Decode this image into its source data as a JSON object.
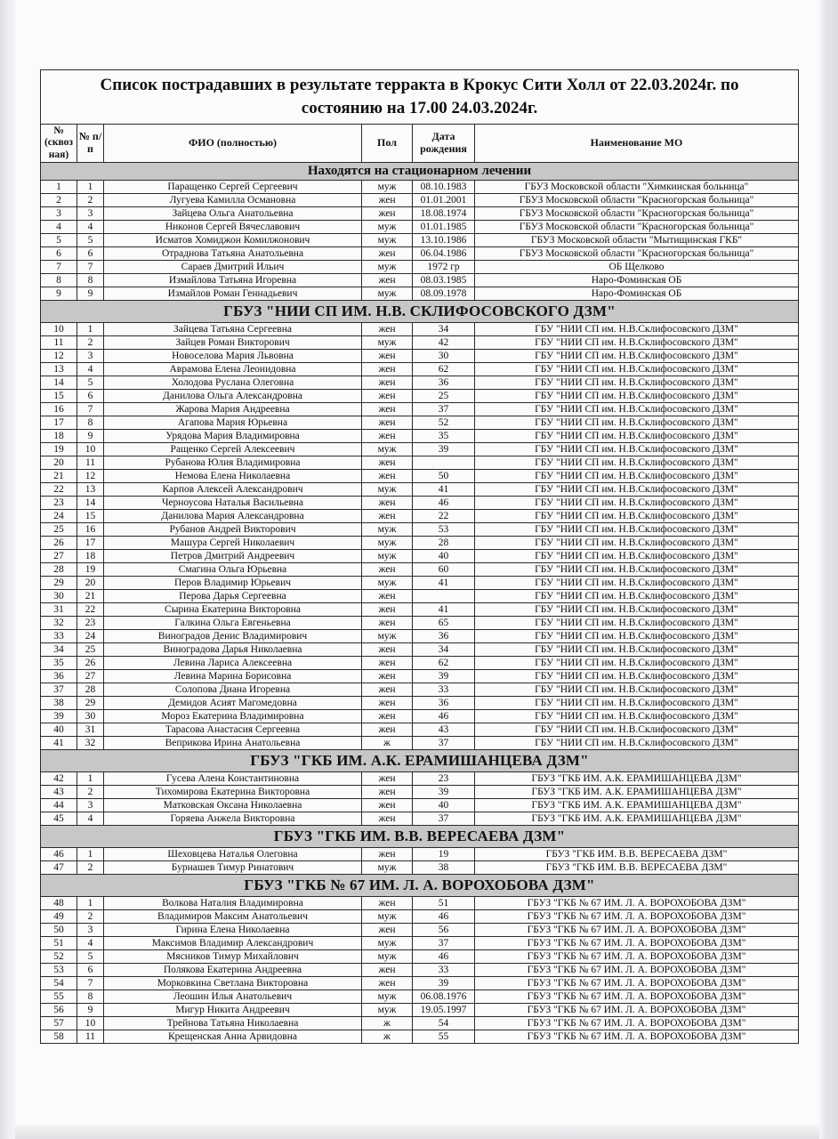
{
  "colors": {
    "section_bg": "#c7c7c7",
    "border_color": "#2b2b2b",
    "page_bg": "#fbfbfc"
  },
  "document": {
    "title": "Список пострадавших в результате терракта в Крокус Сити Холл от 22.03.2024г. по состоянию на 17.00 24.03.2024г."
  },
  "table": {
    "columns": [
      "№ (сквозная)",
      "№ п/п",
      "ФИО (полностью)",
      "Пол",
      "Дата рождения",
      "Наименование МО"
    ]
  },
  "sections": [
    {
      "kind": "status",
      "title": "Находятся на стационарном лечении",
      "rows": [
        [
          "1",
          "1",
          "Паращенко Сергей Сергеевич",
          "муж",
          "08.10.1983",
          "ГБУЗ Московской области \"Химкинская больница\""
        ],
        [
          "2",
          "2",
          "Лугуева Камилла Османовна",
          "жен",
          "01.01.2001",
          "ГБУЗ Московской области \"Красногорская больница\""
        ],
        [
          "3",
          "3",
          "Зайцева Ольга Анатольевна",
          "жен",
          "18.08.1974",
          "ГБУЗ Московской области \"Красногорская больница\""
        ],
        [
          "4",
          "4",
          "Никонов Сергей Вячеславович",
          "муж",
          "01.01.1985",
          "ГБУЗ Московской области \"Красногорская больница\""
        ],
        [
          "5",
          "5",
          "Исматов Хомиджон Комилжонович",
          "муж",
          "13.10.1986",
          "ГБУЗ Московской области \"Мытищинская ГКБ\""
        ],
        [
          "6",
          "6",
          "Отраднова Татьяна Анатольевна",
          "жен",
          "06.04.1986",
          "ГБУЗ Московской области \"Красногорская больница\""
        ],
        [
          "7",
          "7",
          "Сараев Дмитрий Ильич",
          "муж",
          "1972 гр",
          "ОБ Щелково"
        ],
        [
          "8",
          "8",
          "Измайлова Татьяна Игоревна",
          "жен",
          "08.03.1985",
          "Наро-Фоминская ОБ"
        ],
        [
          "9",
          "9",
          "Измайлов Роман Геннадьевич",
          "муж",
          "08.09.1978",
          "Наро-Фоминская ОБ"
        ]
      ]
    },
    {
      "kind": "hospital",
      "title": "ГБУЗ \"НИИ СП ИМ. Н.В. СКЛИФОСОВСКОГО ДЗМ\"",
      "rows": [
        [
          "10",
          "1",
          "Зайцева Татьяна Сергеевна",
          "жен",
          "34",
          "ГБУ \"НИИ СП им. Н.В.Склифосовского ДЗМ\""
        ],
        [
          "11",
          "2",
          "Зайцев Роман Викторович",
          "муж",
          "42",
          "ГБУ \"НИИ СП им. Н.В.Склифосовского ДЗМ\""
        ],
        [
          "12",
          "3",
          "Новоселова Мария Львовна",
          "жен",
          "30",
          "ГБУ \"НИИ СП им. Н.В.Склифосовского ДЗМ\""
        ],
        [
          "13",
          "4",
          "Аврамова Елена Леонидовна",
          "жен",
          "62",
          "ГБУ \"НИИ СП им. Н.В.Склифосовского ДЗМ\""
        ],
        [
          "14",
          "5",
          "Холодова Руслана Олеговна",
          "жен",
          "36",
          "ГБУ \"НИИ СП им. Н.В.Склифосовского ДЗМ\""
        ],
        [
          "15",
          "6",
          "Данилова Ольга Александровна",
          "жен",
          "25",
          "ГБУ \"НИИ СП им. Н.В.Склифосовского ДЗМ\""
        ],
        [
          "16",
          "7",
          "Жарова Мария Андреевна",
          "жен",
          "37",
          "ГБУ \"НИИ СП им. Н.В.Склифосовского ДЗМ\""
        ],
        [
          "17",
          "8",
          "Агапова Мария Юрьевна",
          "жен",
          "52",
          "ГБУ \"НИИ СП им. Н.В.Склифосовского ДЗМ\""
        ],
        [
          "18",
          "9",
          "Урядова Мария Владимировна",
          "жен",
          "35",
          "ГБУ \"НИИ СП им. Н.В.Склифосовского ДЗМ\""
        ],
        [
          "19",
          "10",
          "Ращенко Сергей Алексеевич",
          "муж",
          "39",
          "ГБУ \"НИИ СП им. Н.В.Склифосовского ДЗМ\""
        ],
        [
          "20",
          "11",
          "Рубанова Юлия Владимировна",
          "жен",
          "",
          "ГБУ \"НИИ СП им. Н.В.Склифосовского ДЗМ\""
        ],
        [
          "21",
          "12",
          "Немова Елена Николаевна",
          "жен",
          "50",
          "ГБУ \"НИИ СП им. Н.В.Склифосовского ДЗМ\""
        ],
        [
          "22",
          "13",
          "Карпов Алексей Александрович",
          "муж",
          "41",
          "ГБУ \"НИИ СП им. Н.В.Склифосовского ДЗМ\""
        ],
        [
          "23",
          "14",
          "Черноусова Наталья Васильевна",
          "жен",
          "46",
          "ГБУ \"НИИ СП им. Н.В.Склифосовского ДЗМ\""
        ],
        [
          "24",
          "15",
          "Данилова Мария Александровна",
          "жен",
          "22",
          "ГБУ \"НИИ СП им. Н.В.Склифосовского ДЗМ\""
        ],
        [
          "25",
          "16",
          "Рубанов Андрей Викторович",
          "муж",
          "53",
          "ГБУ \"НИИ СП им. Н.В.Склифосовского ДЗМ\""
        ],
        [
          "26",
          "17",
          "Машура Сергей Николаевич",
          "муж",
          "28",
          "ГБУ \"НИИ СП им. Н.В.Склифосовского ДЗМ\""
        ],
        [
          "27",
          "18",
          "Петров Дмитрий Андреевич",
          "муж",
          "40",
          "ГБУ \"НИИ СП им. Н.В.Склифосовского ДЗМ\""
        ],
        [
          "28",
          "19",
          "Смагина Ольга Юрьевна",
          "жен",
          "60",
          "ГБУ \"НИИ СП им. Н.В.Склифосовского ДЗМ\""
        ],
        [
          "29",
          "20",
          "Перов Владимир Юрьевич",
          "муж",
          "41",
          "ГБУ \"НИИ СП им. Н.В.Склифосовского ДЗМ\""
        ],
        [
          "30",
          "21",
          "Перова Дарья Сергеевна",
          "жен",
          "",
          "ГБУ \"НИИ СП им. Н.В.Склифосовского ДЗМ\""
        ],
        [
          "31",
          "22",
          "Сырина Екатерина Викторовна",
          "жен",
          "41",
          "ГБУ \"НИИ СП им. Н.В.Склифосовского ДЗМ\""
        ],
        [
          "32",
          "23",
          "Галкина Ольга Евгеньевна",
          "жен",
          "65",
          "ГБУ \"НИИ СП им. Н.В.Склифосовского ДЗМ\""
        ],
        [
          "33",
          "24",
          "Виноградов Денис Владимирович",
          "муж",
          "36",
          "ГБУ \"НИИ СП им. Н.В.Склифосовского ДЗМ\""
        ],
        [
          "34",
          "25",
          "Виноградова Дарья Николаевна",
          "жен",
          "34",
          "ГБУ \"НИИ СП им. Н.В.Склифосовского ДЗМ\""
        ],
        [
          "35",
          "26",
          "Левина Лариса Алексеевна",
          "жен",
          "62",
          "ГБУ \"НИИ СП им. Н.В.Склифосовского ДЗМ\""
        ],
        [
          "36",
          "27",
          "Левина Марина Борисовна",
          "жен",
          "39",
          "ГБУ \"НИИ СП им. Н.В.Склифосовского ДЗМ\""
        ],
        [
          "37",
          "28",
          "Солопова Диана Игоревна",
          "жен",
          "33",
          "ГБУ \"НИИ СП им. Н.В.Склифосовского ДЗМ\""
        ],
        [
          "38",
          "29",
          "Демидов Асият Магомедовна",
          "жен",
          "36",
          "ГБУ \"НИИ СП им. Н.В.Склифосовского ДЗМ\""
        ],
        [
          "39",
          "30",
          "Мороз Екатерина Владимировна",
          "жен",
          "46",
          "ГБУ \"НИИ СП им. Н.В.Склифосовского ДЗМ\""
        ],
        [
          "40",
          "31",
          "Тарасова Анастасия Сергеевна",
          "жен",
          "43",
          "ГБУ \"НИИ СП им. Н.В.Склифосовского ДЗМ\""
        ],
        [
          "41",
          "32",
          "Веприкова Ирина Анатольевна",
          "ж",
          "37",
          "ГБУ \"НИИ СП им. Н.В.Склифосовского ДЗМ\""
        ]
      ]
    },
    {
      "kind": "hospital",
      "title": "ГБУЗ \"ГКБ ИМ. А.К. ЕРАМИШАНЦЕВА ДЗМ\"",
      "rows": [
        [
          "42",
          "1",
          "Гусева Алена Константиновна",
          "жен",
          "23",
          "ГБУЗ \"ГКБ ИМ. А.К. ЕРАМИШАНЦЕВА ДЗМ\""
        ],
        [
          "43",
          "2",
          "Тихомирова Екатерина Викторовна",
          "жен",
          "39",
          "ГБУЗ \"ГКБ ИМ. А.К. ЕРАМИШАНЦЕВА ДЗМ\""
        ],
        [
          "44",
          "3",
          "Матковская Оксана Николаевна",
          "жен",
          "40",
          "ГБУЗ \"ГКБ ИМ. А.К. ЕРАМИШАНЦЕВА ДЗМ\""
        ],
        [
          "45",
          "4",
          "Горяева Анжела Викторовна",
          "жен",
          "37",
          "ГБУЗ \"ГКБ ИМ. А.К. ЕРАМИШАНЦЕВА ДЗМ\""
        ]
      ]
    },
    {
      "kind": "hospital",
      "title": "ГБУЗ \"ГКБ ИМ. В.В. ВЕРЕСАЕВА ДЗМ\"",
      "rows": [
        [
          "46",
          "1",
          "Шеховцева Наталья Олеговна",
          "жен",
          "19",
          "ГБУЗ \"ГКБ ИМ. В.В. ВЕРЕСАЕВА ДЗМ\""
        ],
        [
          "47",
          "2",
          "Бурнашев Тимур Ринатович",
          "муж",
          "38",
          "ГБУЗ \"ГКБ ИМ. В.В. ВЕРЕСАЕВА ДЗМ\""
        ]
      ]
    },
    {
      "kind": "hospital",
      "title": "ГБУЗ \"ГКБ № 67 ИМ. Л. А. ВОРОХОБОВА ДЗМ\"",
      "rows": [
        [
          "48",
          "1",
          "Волкова Наталия Владимировна",
          "жен",
          "51",
          "ГБУЗ \"ГКБ № 67 ИМ. Л. А. ВОРОХОБОВА ДЗМ\""
        ],
        [
          "49",
          "2",
          "Владимиров Максим Анатольевич",
          "муж",
          "46",
          "ГБУЗ \"ГКБ № 67 ИМ. Л. А. ВОРОХОБОВА ДЗМ\""
        ],
        [
          "50",
          "3",
          "Гирина Елена Николаевна",
          "жен",
          "56",
          "ГБУЗ \"ГКБ № 67 ИМ. Л. А. ВОРОХОБОВА ДЗМ\""
        ],
        [
          "51",
          "4",
          "Максимов Владимир Александрович",
          "муж",
          "37",
          "ГБУЗ \"ГКБ № 67 ИМ. Л. А. ВОРОХОБОВА ДЗМ\""
        ],
        [
          "52",
          "5",
          "Мясников Тимур Михайлович",
          "муж",
          "46",
          "ГБУЗ \"ГКБ № 67 ИМ. Л. А. ВОРОХОБОВА ДЗМ\""
        ],
        [
          "53",
          "6",
          "Полякова Екатерина Андреевна",
          "жен",
          "33",
          "ГБУЗ \"ГКБ № 67 ИМ. Л. А. ВОРОХОБОВА ДЗМ\""
        ],
        [
          "54",
          "7",
          "Морковкина Светлана Викторовна",
          "жен",
          "39",
          "ГБУЗ \"ГКБ № 67 ИМ. Л. А. ВОРОХОБОВА ДЗМ\""
        ],
        [
          "55",
          "8",
          "Леошин Илья Анатольевич",
          "муж",
          "06.08.1976",
          "ГБУЗ \"ГКБ № 67 ИМ. Л. А. ВОРОХОБОВА ДЗМ\""
        ],
        [
          "56",
          "9",
          "Мигур Никита Андреевич",
          "муж",
          "19.05.1997",
          "ГБУЗ \"ГКБ № 67 ИМ. Л. А. ВОРОХОБОВА ДЗМ\""
        ],
        [
          "57",
          "10",
          "Трейнова Татьяна Николаевна",
          "ж",
          "54",
          "ГБУЗ \"ГКБ № 67 ИМ. Л. А. ВОРОХОБОВА ДЗМ\""
        ],
        [
          "58",
          "11",
          "Крещенская Анна Арвидовна",
          "ж",
          "55",
          "ГБУЗ \"ГКБ № 67 ИМ. Л. А. ВОРОХОБОВА ДЗМ\""
        ]
      ]
    }
  ]
}
